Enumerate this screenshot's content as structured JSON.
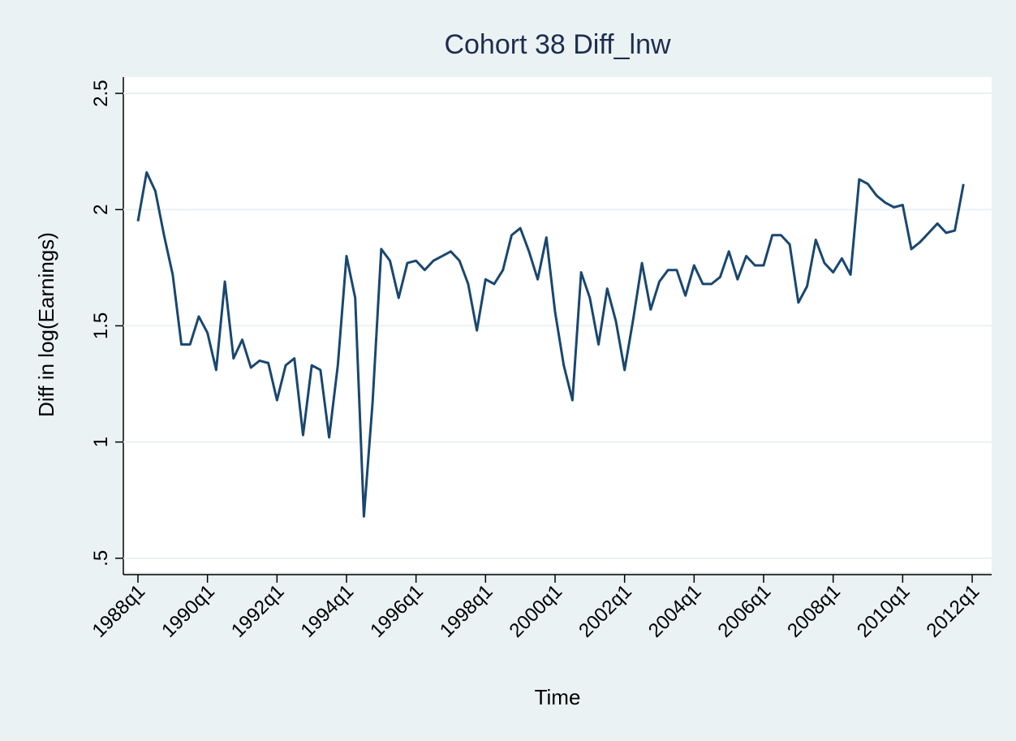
{
  "chart_data": {
    "type": "line",
    "title": "Cohort 38 Diff_lnw",
    "x_label": "Time",
    "y_label": "Diff in log(Earnings)",
    "color": "#1a476f",
    "grid": true,
    "x": [
      1988,
      1988.25,
      1988.5,
      1988.75,
      1989,
      1989.25,
      1989.5,
      1989.75,
      1990,
      1990.25,
      1990.5,
      1990.75,
      1991,
      1991.25,
      1991.5,
      1991.75,
      1992,
      1992.25,
      1992.5,
      1992.75,
      1993,
      1993.25,
      1993.5,
      1993.75,
      1994,
      1994.25,
      1994.5,
      1994.75,
      1995,
      1995.25,
      1995.5,
      1995.75,
      1996,
      1996.25,
      1996.5,
      1996.75,
      1997,
      1997.25,
      1997.5,
      1997.75,
      1998,
      1998.25,
      1998.5,
      1998.75,
      1999,
      1999.25,
      1999.5,
      1999.75,
      2000,
      2000.25,
      2000.5,
      2000.75,
      2001,
      2001.25,
      2001.5,
      2001.75,
      2002,
      2002.25,
      2002.5,
      2002.75,
      2003,
      2003.25,
      2003.5,
      2003.75,
      2004,
      2004.25,
      2004.5,
      2004.75,
      2005,
      2005.25,
      2005.5,
      2005.75,
      2006,
      2006.25,
      2006.5,
      2006.75,
      2007,
      2007.25,
      2007.5,
      2007.75,
      2008,
      2008.25,
      2008.5,
      2008.75,
      2009,
      2009.25,
      2009.5,
      2009.75,
      2010,
      2010.25,
      2010.5,
      2010.75,
      2011,
      2011.25,
      2011.5,
      2011.75
    ],
    "values": [
      1.95,
      2.16,
      2.08,
      1.89,
      1.72,
      1.42,
      1.42,
      1.54,
      1.47,
      1.31,
      1.69,
      1.36,
      1.44,
      1.32,
      1.35,
      1.34,
      1.18,
      1.33,
      1.36,
      1.03,
      1.33,
      1.31,
      1.02,
      1.33,
      1.8,
      1.62,
      0.68,
      1.17,
      1.83,
      1.78,
      1.62,
      1.77,
      1.78,
      1.74,
      1.78,
      1.8,
      1.82,
      1.78,
      1.68,
      1.48,
      1.7,
      1.68,
      1.74,
      1.89,
      1.92,
      1.82,
      1.7,
      1.88,
      1.56,
      1.33,
      1.18,
      1.73,
      1.62,
      1.42,
      1.66,
      1.52,
      1.31,
      1.53,
      1.77,
      1.57,
      1.69,
      1.74,
      1.74,
      1.63,
      1.76,
      1.68,
      1.68,
      1.71,
      1.82,
      1.7,
      1.8,
      1.76,
      1.76,
      1.89,
      1.89,
      1.85,
      1.6,
      1.67,
      1.87,
      1.77,
      1.73,
      1.79,
      1.72,
      2.13,
      2.11,
      2.06,
      2.03,
      2.01,
      2.02,
      1.83,
      1.86,
      1.9,
      1.94,
      1.9,
      1.91,
      2.11
    ],
    "xlim": [
      1987.58,
      2012.56
    ],
    "xticks": [
      {
        "value": 1988,
        "label": "1988q1"
      },
      {
        "value": 1990,
        "label": "1990q1"
      },
      {
        "value": 1992,
        "label": "1992q1"
      },
      {
        "value": 1994,
        "label": "1994q1"
      },
      {
        "value": 1996,
        "label": "1996q1"
      },
      {
        "value": 1998,
        "label": "1998q1"
      },
      {
        "value": 2000,
        "label": "2000q1"
      },
      {
        "value": 2002,
        "label": "2002q1"
      },
      {
        "value": 2004,
        "label": "2004q1"
      },
      {
        "value": 2006,
        "label": "2006q1"
      },
      {
        "value": 2008,
        "label": "2008q1"
      },
      {
        "value": 2010,
        "label": "2010q1"
      },
      {
        "value": 2012,
        "label": "2012q1"
      }
    ],
    "ylim": [
      0.44,
      2.57
    ],
    "yticks": [
      {
        "value": 0.5,
        "label": ".5"
      },
      1,
      1.5,
      2,
      2.5
    ]
  }
}
